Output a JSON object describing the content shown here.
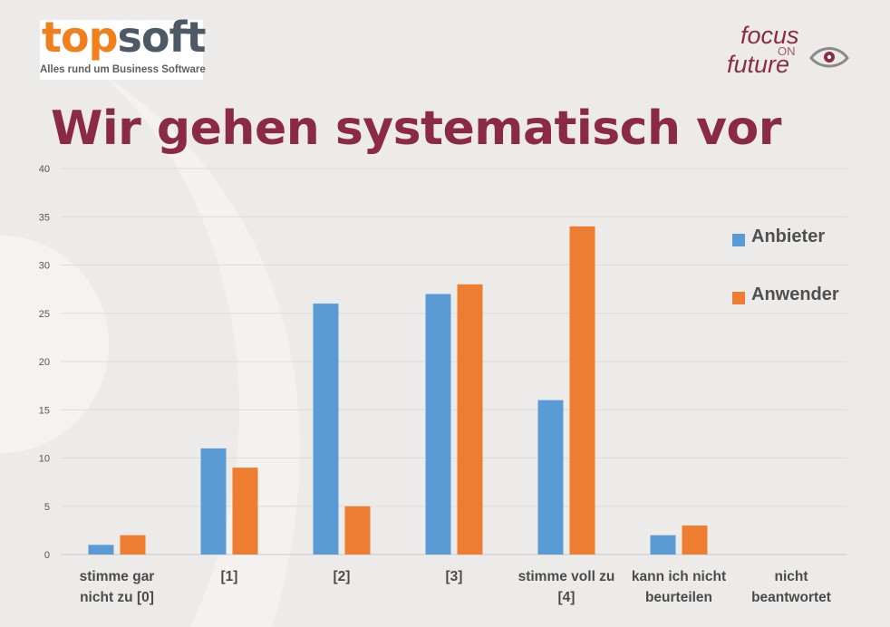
{
  "logo": {
    "word_part1": "top",
    "word_part2": "soft",
    "tagline": "Alles rund um Business Software",
    "colors": {
      "orange": "#f07f1c",
      "slate": "#4d5a66"
    }
  },
  "brand": {
    "line1": "focus",
    "line2": "ON",
    "line3": "future",
    "icon": "eye-icon",
    "color": "#8c2b45"
  },
  "title": "Wir gehen systematisch vor",
  "chart_data": {
    "type": "bar",
    "categories": [
      "stimme gar\nnicht zu [0]",
      "[1]",
      "[2]",
      "[3]",
      "stimme voll zu\n[4]",
      "kann ich nicht\nbeurteilen",
      "nicht\nbeantwortet"
    ],
    "series": [
      {
        "name": "Anbieter",
        "values": [
          1,
          11,
          26,
          27,
          16,
          2,
          0
        ],
        "color": "#5b9bd5"
      },
      {
        "name": "Anwender",
        "values": [
          2,
          9,
          5,
          28,
          34,
          3,
          0
        ],
        "color": "#ed7d31"
      }
    ],
    "ylim": [
      0,
      40
    ],
    "yticks": [
      "0",
      "5",
      "10",
      "15",
      "20",
      "25",
      "30",
      "35",
      "40"
    ],
    "grid": true,
    "legend": "right"
  }
}
